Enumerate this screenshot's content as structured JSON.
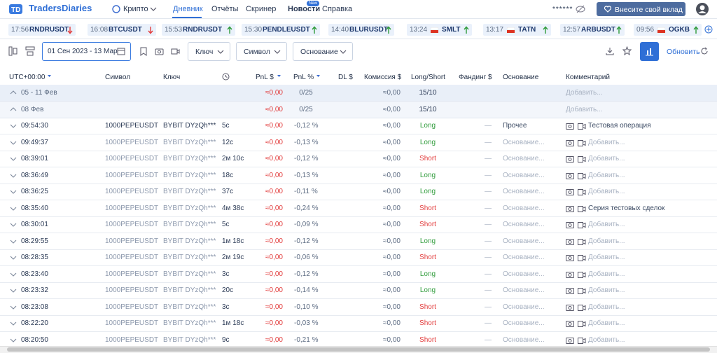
{
  "header": {
    "logo": "TradersDiaries",
    "market": "Крипто",
    "nav": [
      "Дневник",
      "Отчёты",
      "Скринер",
      "Новости",
      "Справка"
    ],
    "active_nav": 0,
    "news_badge": "New",
    "balance": "******",
    "donate": "Внесите свой вклад"
  },
  "ticker": [
    {
      "time": "17:56",
      "symbol": "RNDRUSDT",
      "dir": "down",
      "flag": false
    },
    {
      "time": "16:08",
      "symbol": "BTCUSDT",
      "dir": "down",
      "flag": false
    },
    {
      "time": "15:53",
      "symbol": "RNDRUSDT",
      "dir": "up",
      "flag": false
    },
    {
      "time": "15:30",
      "symbol": "PENDLEUSDT",
      "dir": "up",
      "flag": false
    },
    {
      "time": "14:40",
      "symbol": "BLURUSDT",
      "dir": "up",
      "flag": false
    },
    {
      "time": "13:24",
      "symbol": "SMLT",
      "dir": "up",
      "flag": true
    },
    {
      "time": "13:17",
      "symbol": "TATN",
      "dir": "up",
      "flag": true
    },
    {
      "time": "12:57",
      "symbol": "ARBUSDT",
      "dir": "up",
      "flag": false
    },
    {
      "time": "09:56",
      "symbol": "OGKB",
      "dir": "up",
      "flag": true
    }
  ],
  "toolbar": {
    "date_range": "01 Сен 2023 - 13 Мар",
    "filters": [
      "Ключ",
      "Символ",
      "Основание"
    ],
    "refresh": "Обновить"
  },
  "table": {
    "columns": [
      "UTC+00:00",
      "Символ",
      "Ключ",
      "PnL $",
      "PnL %",
      "DL $",
      "Комиссия $",
      "Long/Short",
      "Фандинг $",
      "Основание",
      "Комментарий"
    ],
    "placeholders": {
      "basis": "Основание...",
      "comment": "Добавить..."
    },
    "side_colors": {
      "Long": "#2e9b3a",
      "Short": "#e23c3c"
    },
    "groups": [
      {
        "label": "05 - 11 Фев",
        "pnl": "≈0,00",
        "pct": "0/25",
        "commission": "≈0,00",
        "side": "15/10"
      },
      {
        "label": "08 Фев",
        "pnl": "≈0,00",
        "pct": "0/25",
        "commission": "≈0,00",
        "side": "15/10"
      }
    ],
    "rows": [
      {
        "time": "09:54:30",
        "symbol": "1000PEPEUSDT",
        "key": "BYBIT DYzQh***",
        "duration": "5с",
        "pnl": "≈0,00",
        "pct": "-0,12 %",
        "commission": "≈0,00",
        "side": "Long",
        "funding": "—",
        "basis": "Прочее",
        "comment": "Тестовая операция"
      },
      {
        "time": "09:49:37",
        "symbol": "1000PEPEUSDT",
        "key": "BYBIT DYzQh***",
        "duration": "12с",
        "pnl": "≈0,00",
        "pct": "-0,13 %",
        "commission": "≈0,00",
        "side": "Long",
        "funding": "—",
        "basis": null,
        "comment": null
      },
      {
        "time": "08:39:01",
        "symbol": "1000PEPEUSDT",
        "key": "BYBIT DYzQh***",
        "duration": "2м 10с",
        "pnl": "≈0,00",
        "pct": "-0,12 %",
        "commission": "≈0,00",
        "side": "Short",
        "funding": "—",
        "basis": null,
        "comment": null
      },
      {
        "time": "08:36:49",
        "symbol": "1000PEPEUSDT",
        "key": "BYBIT DYzQh***",
        "duration": "18с",
        "pnl": "≈0,00",
        "pct": "-0,13 %",
        "commission": "≈0,00",
        "side": "Long",
        "funding": "—",
        "basis": null,
        "comment": null
      },
      {
        "time": "08:36:25",
        "symbol": "1000PEPEUSDT",
        "key": "BYBIT DYzQh***",
        "duration": "37с",
        "pnl": "≈0,00",
        "pct": "-0,11 %",
        "commission": "≈0,00",
        "side": "Long",
        "funding": "—",
        "basis": null,
        "comment": null
      },
      {
        "time": "08:35:40",
        "symbol": "1000PEPEUSDT",
        "key": "BYBIT DYzQh***",
        "duration": "4м 38с",
        "pnl": "≈0,00",
        "pct": "-0,24 %",
        "commission": "≈0,00",
        "side": "Short",
        "funding": "—",
        "basis": null,
        "comment": "Серия тестовых сделок"
      },
      {
        "time": "08:30:01",
        "symbol": "1000PEPEUSDT",
        "key": "BYBIT DYzQh***",
        "duration": "5с",
        "pnl": "≈0,00",
        "pct": "-0,09 %",
        "commission": "≈0,00",
        "side": "Short",
        "funding": "—",
        "basis": null,
        "comment": null
      },
      {
        "time": "08:29:55",
        "symbol": "1000PEPEUSDT",
        "key": "BYBIT DYzQh***",
        "duration": "1м 18с",
        "pnl": "≈0,00",
        "pct": "-0,12 %",
        "commission": "≈0,00",
        "side": "Long",
        "funding": "—",
        "basis": null,
        "comment": null
      },
      {
        "time": "08:28:35",
        "symbol": "1000PEPEUSDT",
        "key": "BYBIT DYzQh***",
        "duration": "2м 19с",
        "pnl": "≈0,00",
        "pct": "-0,06 %",
        "commission": "≈0,00",
        "side": "Short",
        "funding": "—",
        "basis": null,
        "comment": null
      },
      {
        "time": "08:23:40",
        "symbol": "1000PEPEUSDT",
        "key": "BYBIT DYzQh***",
        "duration": "3с",
        "pnl": "≈0,00",
        "pct": "-0,12 %",
        "commission": "≈0,00",
        "side": "Long",
        "funding": "—",
        "basis": null,
        "comment": null
      },
      {
        "time": "08:23:32",
        "symbol": "1000PEPEUSDT",
        "key": "BYBIT DYzQh***",
        "duration": "20с",
        "pnl": "≈0,00",
        "pct": "-0,14 %",
        "commission": "≈0,00",
        "side": "Long",
        "funding": "—",
        "basis": null,
        "comment": null
      },
      {
        "time": "08:23:08",
        "symbol": "1000PEPEUSDT",
        "key": "BYBIT DYzQh***",
        "duration": "3с",
        "pnl": "≈0,00",
        "pct": "-0,10 %",
        "commission": "≈0,00",
        "side": "Short",
        "funding": "—",
        "basis": null,
        "comment": null
      },
      {
        "time": "08:22:20",
        "symbol": "1000PEPEUSDT",
        "key": "BYBIT DYzQh***",
        "duration": "1м 18с",
        "pnl": "≈0,00",
        "pct": "-0,03 %",
        "commission": "≈0,00",
        "side": "Short",
        "funding": "—",
        "basis": null,
        "comment": null
      },
      {
        "time": "08:20:50",
        "symbol": "1000PEPEUSDT",
        "key": "BYBIT DYzQh***",
        "duration": "9с",
        "pnl": "≈0,00",
        "pct": "-0,21 %",
        "commission": "≈0,00",
        "side": "Short",
        "funding": "—",
        "basis": null,
        "comment": null
      }
    ]
  }
}
